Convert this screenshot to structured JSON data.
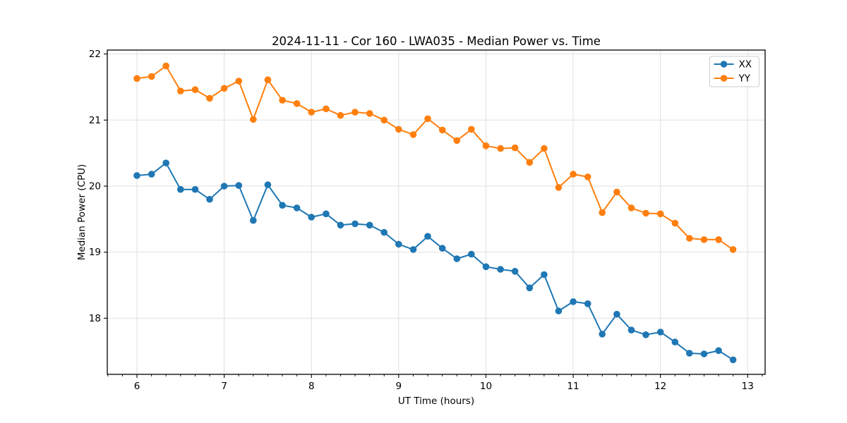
{
  "chart_data": {
    "type": "line",
    "title": "2024-11-11 - Cor 160 - LWA035 - Median Power vs. Time",
    "xlabel": "UT Time (hours)",
    "ylabel": "Median Power (CPU)",
    "xlim": [
      5.66,
      13.2
    ],
    "ylim": [
      17.15,
      22.06
    ],
    "xticks": [
      6,
      7,
      8,
      9,
      10,
      11,
      12,
      13
    ],
    "yticks": [
      18,
      19,
      20,
      21,
      22
    ],
    "minor_ticks_x_per_hour": 6,
    "grid": true,
    "legend_position": "upper right",
    "marker": "circle",
    "x": [
      6.0,
      6.167,
      6.333,
      6.5,
      6.667,
      6.833,
      7.0,
      7.167,
      7.333,
      7.5,
      7.667,
      7.833,
      8.0,
      8.167,
      8.333,
      8.5,
      8.667,
      8.833,
      9.0,
      9.167,
      9.333,
      9.5,
      9.667,
      9.833,
      10.0,
      10.167,
      10.333,
      10.5,
      10.667,
      10.833,
      11.0,
      11.167,
      11.333,
      11.5,
      11.667,
      11.833,
      12.0,
      12.167,
      12.333,
      12.5,
      12.667,
      12.833
    ],
    "series": [
      {
        "name": "XX",
        "color": "#1f77b4",
        "values": [
          20.16,
          20.18,
          20.35,
          19.95,
          19.95,
          19.8,
          20.0,
          20.01,
          19.48,
          20.02,
          19.71,
          19.67,
          19.53,
          19.58,
          19.41,
          19.43,
          19.41,
          19.3,
          19.12,
          19.04,
          19.24,
          19.06,
          18.9,
          18.97,
          18.78,
          18.74,
          18.71,
          18.46,
          18.66,
          18.11,
          18.25,
          18.22,
          17.76,
          18.06,
          17.82,
          17.75,
          17.79,
          17.64,
          17.47,
          17.46,
          17.51,
          17.37
        ]
      },
      {
        "name": "YY",
        "color": "#ff7f0e",
        "values": [
          21.63,
          21.66,
          21.82,
          21.44,
          21.46,
          21.33,
          21.48,
          21.59,
          21.01,
          21.61,
          21.3,
          21.25,
          21.12,
          21.17,
          21.07,
          21.12,
          21.1,
          21.0,
          20.86,
          20.78,
          21.02,
          20.85,
          20.69,
          20.86,
          20.61,
          20.57,
          20.58,
          20.36,
          20.57,
          19.98,
          20.18,
          20.14,
          19.6,
          19.91,
          19.67,
          19.59,
          19.58,
          19.44,
          19.21,
          19.19,
          19.19,
          19.04
        ]
      }
    ],
    "colors": {
      "background": "#ffffff",
      "grid": "#e0e0e0",
      "axis": "#000000",
      "legend_border": "#cccccc"
    }
  }
}
